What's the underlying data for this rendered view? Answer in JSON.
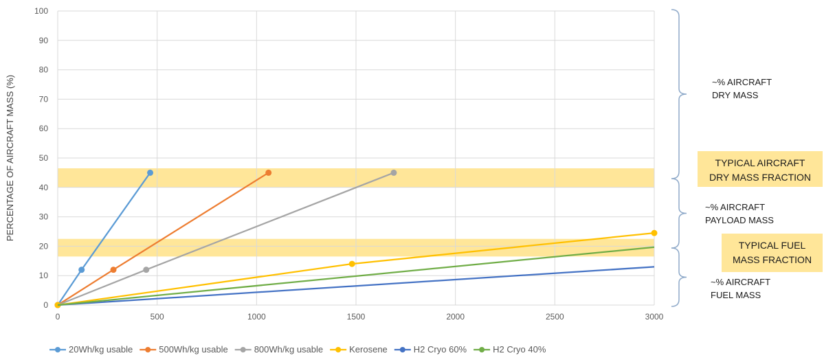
{
  "chart_data": {
    "type": "line",
    "title": "",
    "xlabel": "",
    "ylabel": "PERCENTAGE OF AIRCRAFT MASS (%)",
    "xlim": [
      0,
      3000
    ],
    "ylim": [
      0,
      100
    ],
    "x_ticks": [
      0,
      500,
      1000,
      1500,
      2000,
      2500,
      3000
    ],
    "y_ticks": [
      0,
      10,
      20,
      30,
      40,
      50,
      60,
      70,
      80,
      90,
      100
    ],
    "grid": true,
    "legend_position": "bottom",
    "series": [
      {
        "name": "20Wh/kg usable",
        "color": "#5B9BD5",
        "markers": true,
        "points": [
          [
            0,
            0
          ],
          [
            120,
            12
          ],
          [
            465,
            45
          ]
        ]
      },
      {
        "name": "500Wh/kg usable",
        "color": "#ED7D31",
        "markers": true,
        "points": [
          [
            0,
            0
          ],
          [
            280,
            12
          ],
          [
            1060,
            45
          ]
        ]
      },
      {
        "name": "800Wh/kg usable",
        "color": "#A5A5A5",
        "markers": true,
        "points": [
          [
            0,
            0
          ],
          [
            445,
            12
          ],
          [
            1690,
            45
          ]
        ]
      },
      {
        "name": "Kerosene",
        "color": "#FFC000",
        "markers": true,
        "points": [
          [
            0,
            0
          ],
          [
            1480,
            14
          ],
          [
            3000,
            24.5
          ]
        ]
      },
      {
        "name": "H2 Cryo 60%",
        "color": "#4472C4",
        "markers": false,
        "points": [
          [
            0,
            0
          ],
          [
            3000,
            13
          ]
        ]
      },
      {
        "name": "H2 Cryo 40%",
        "color": "#70AD47",
        "markers": false,
        "points": [
          [
            0,
            0
          ],
          [
            3000,
            19.7
          ]
        ]
      }
    ],
    "bands": [
      {
        "y_from": 40,
        "y_to": 46.5,
        "color": "#FFE699"
      },
      {
        "y_from": 16.5,
        "y_to": 22.5,
        "color": "#FFE699"
      }
    ],
    "annotations": [
      {
        "lines": [
          "~% AIRCRAFT",
          "DRY MASS"
        ]
      },
      {
        "lines": [
          "~% AIRCRAFT",
          "PAYLOAD MASS"
        ]
      },
      {
        "lines": [
          "~% AIRCRAFT",
          "FUEL MASS"
        ]
      }
    ],
    "boxed_labels": [
      {
        "lines": [
          "TYPICAL AIRCRAFT",
          "DRY MASS FRACTION"
        ],
        "fill": "#FFE699"
      },
      {
        "lines": [
          "TYPICAL FUEL",
          "MASS FRACTION"
        ],
        "fill": "#FFE699"
      }
    ]
  }
}
